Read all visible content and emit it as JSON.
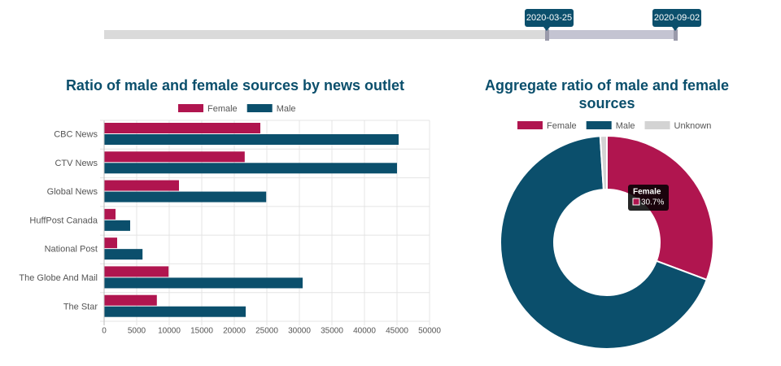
{
  "slider": {
    "start": "2020-03-25",
    "end": "2020-09-02"
  },
  "chart_data": [
    {
      "type": "bar",
      "orientation": "horizontal",
      "title": "Ratio of male and female sources by news outlet",
      "categories": [
        "CBC News",
        "CTV News",
        "Global News",
        "HuffPost Canada",
        "National Post",
        "The Globe And Mail",
        "The Star"
      ],
      "series": [
        {
          "name": "Female",
          "color": "#b0154f",
          "values": [
            24000,
            21600,
            11500,
            1750,
            2000,
            9900,
            8100
          ]
        },
        {
          "name": "Male",
          "color": "#0b4f6c",
          "values": [
            45250,
            45000,
            24900,
            4000,
            5900,
            30500,
            21750
          ]
        }
      ],
      "xlim": [
        0,
        50000
      ],
      "xticks": [
        0,
        5000,
        10000,
        15000,
        20000,
        25000,
        30000,
        35000,
        40000,
        45000,
        50000
      ],
      "grid": true,
      "legend": "top"
    },
    {
      "type": "doughnut",
      "title": "Aggregate ratio of male and female sources",
      "categories": [
        "Female",
        "Male",
        "Unknown"
      ],
      "values": [
        30.7,
        68.3,
        1.0
      ],
      "value_labels": [
        "30.7%",
        null,
        null
      ],
      "colors": [
        "#b0154f",
        "#0b4f6c",
        "#d3d3d3"
      ],
      "legend": "top"
    }
  ]
}
